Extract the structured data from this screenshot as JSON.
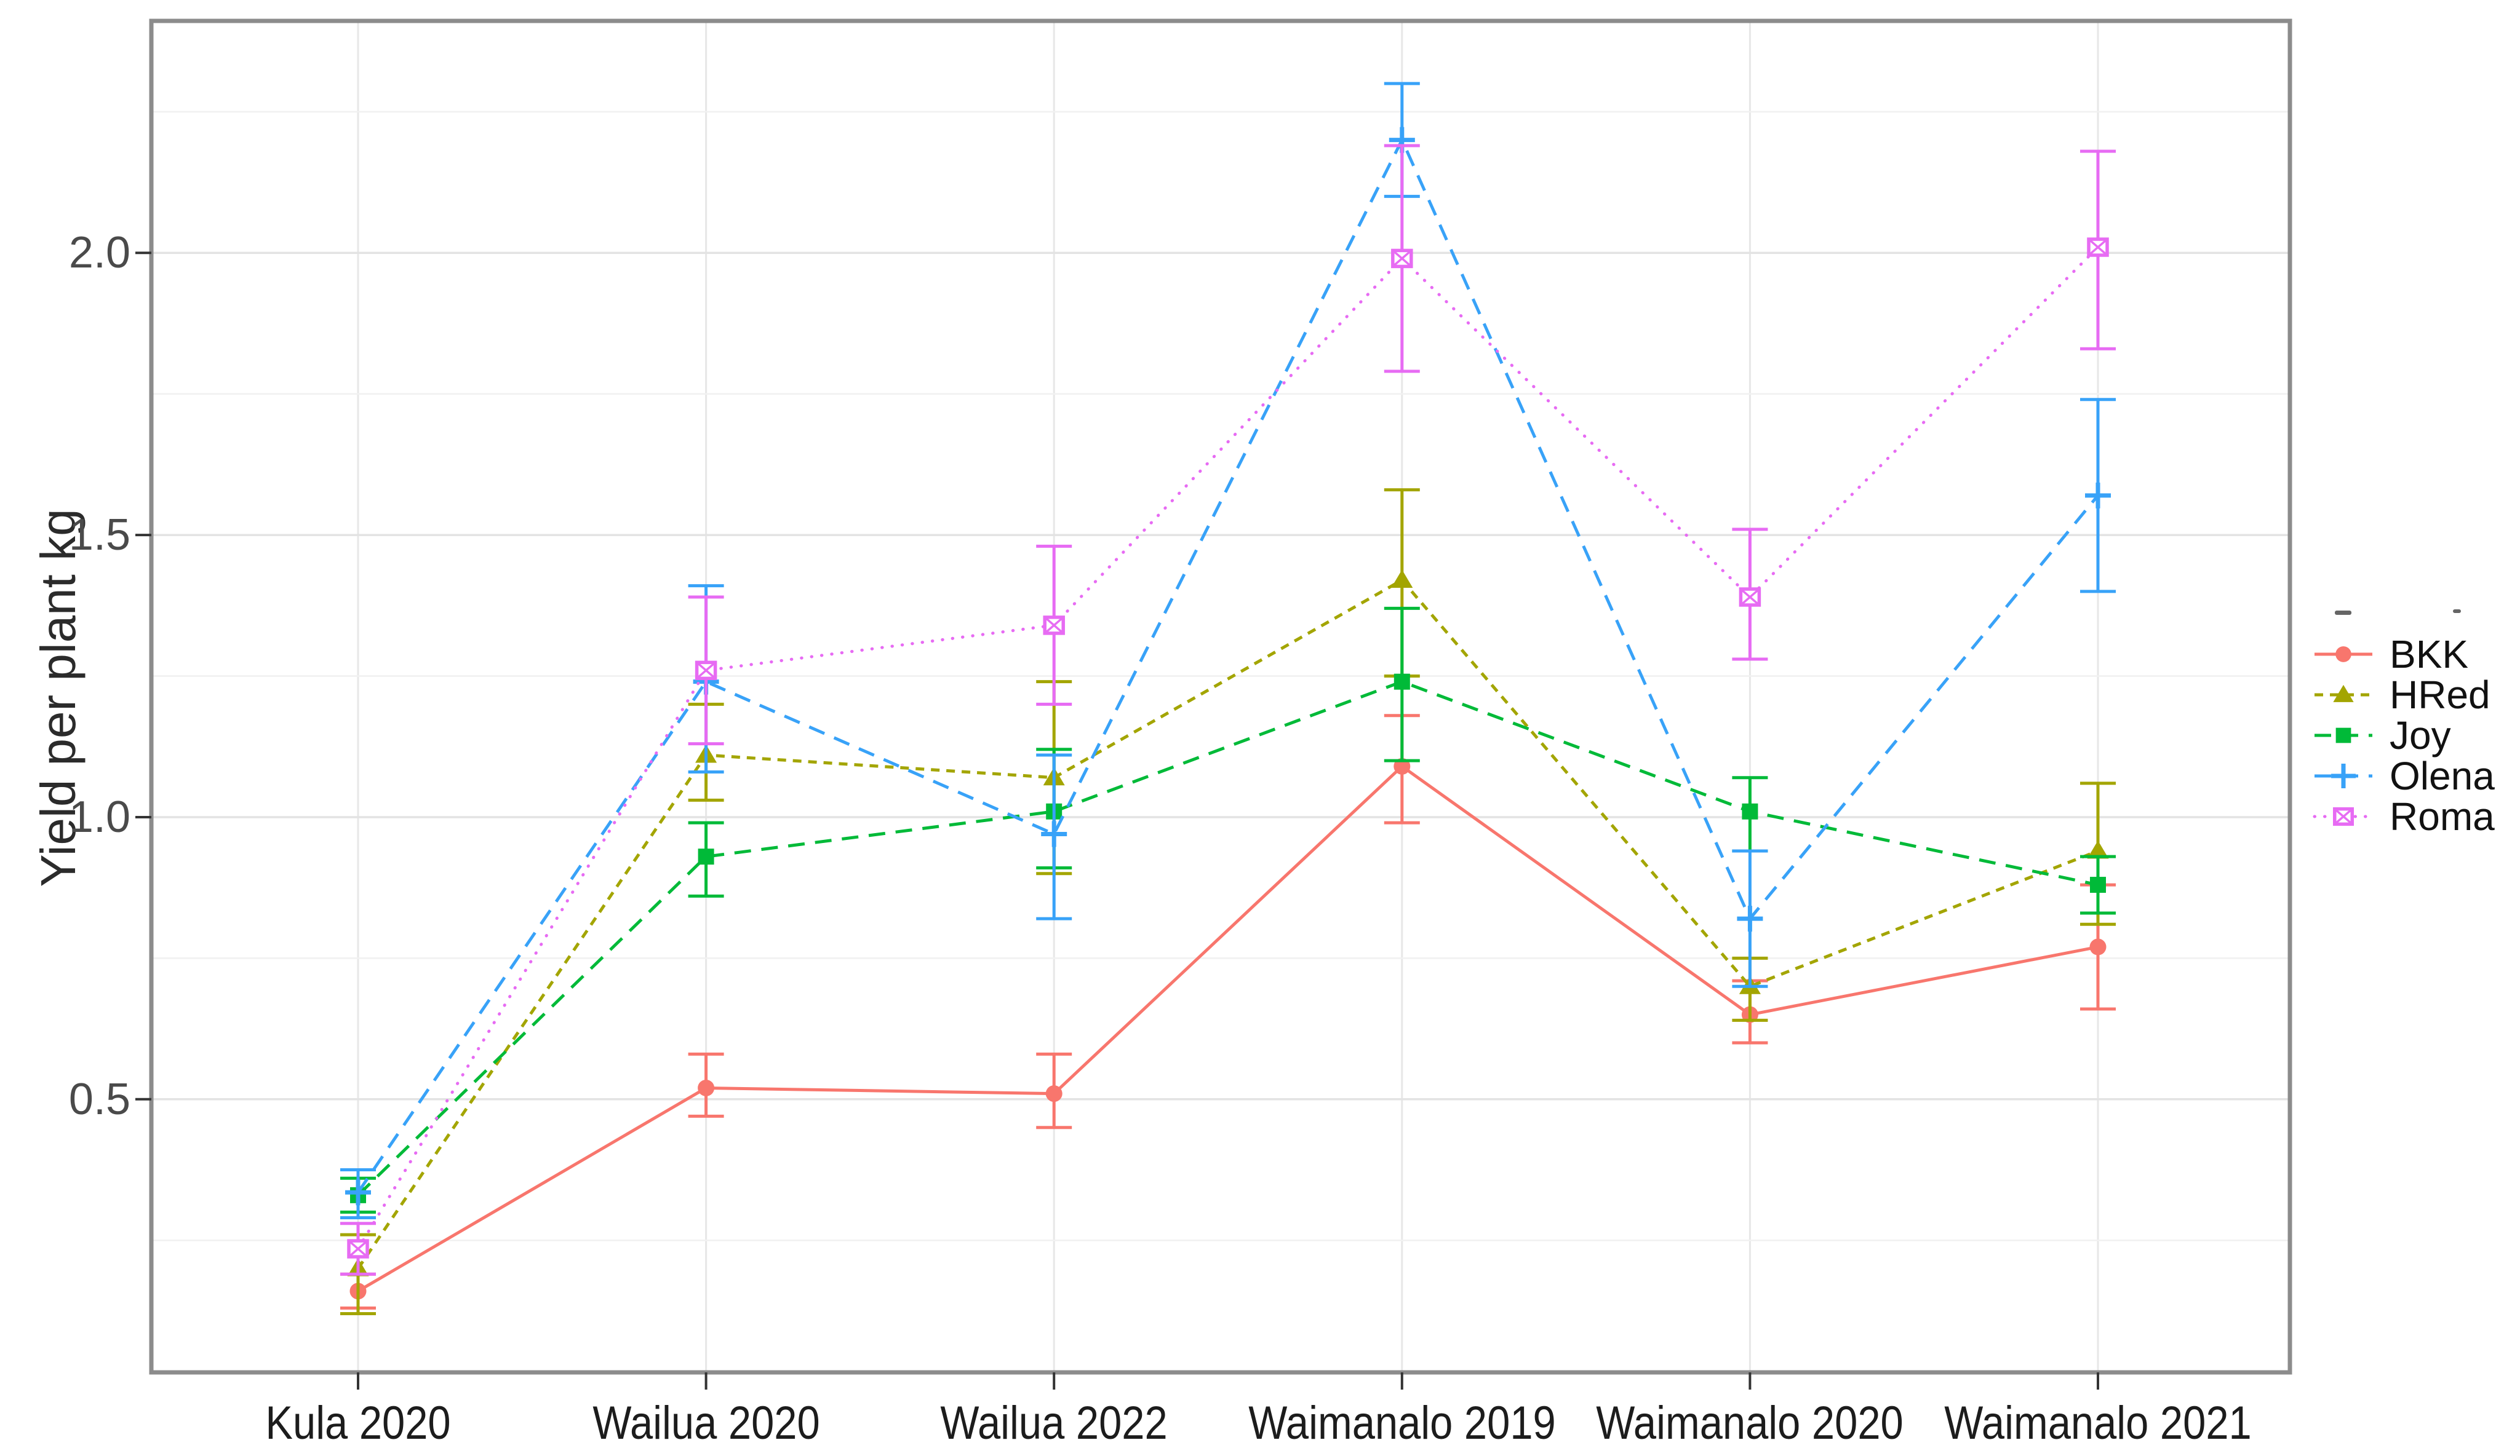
{
  "y_axis": {
    "label": "Yield per plant kg",
    "tick_labels": [
      "0.5",
      "1.0",
      "1.5",
      "2.0"
    ]
  },
  "x_axis": {
    "labels": [
      "Kula 2020",
      "Wailua 2020",
      "Wailua 2022",
      "Waimanalo 2019",
      "Waimanalo 2020",
      "Waimanalo 2021"
    ]
  },
  "chart_data": {
    "type": "line",
    "title": "",
    "xlabel": "",
    "ylabel": "Yield per plant kg",
    "ylim": [
      0.016,
      2.411
    ],
    "yticks": [
      0.5,
      1.0,
      1.5,
      2.0
    ],
    "ytick_labels": [
      "0.5",
      "1.0",
      "1.5",
      "2.0"
    ],
    "yminor_ticks": [
      0.25,
      0.75,
      1.25,
      1.75,
      2.25
    ],
    "grid": "horizontal major+minor, vertical line at each category",
    "legend_position": "right-middle",
    "error_bars": true,
    "categories": [
      "Kula 2020",
      "Wailua 2020",
      "Wailua 2022",
      "Waimanalo 2019",
      "Waimanalo 2020",
      "Waimanalo 2021"
    ],
    "series": [
      {
        "name": "BKK",
        "color": "#F8766D",
        "marker": "circle",
        "linestyle": "solid",
        "values": [
          0.16,
          0.52,
          0.51,
          1.09,
          0.65,
          0.77
        ],
        "err_low": [
          0.13,
          0.47,
          0.45,
          0.99,
          0.6,
          0.66
        ],
        "err_high": [
          0.19,
          0.58,
          0.58,
          1.18,
          0.71,
          0.88
        ]
      },
      {
        "name": "HRed",
        "color": "#A3A500",
        "marker": "triangle",
        "linestyle": "shortdash",
        "values": [
          0.2,
          1.11,
          1.07,
          1.42,
          0.7,
          0.94
        ],
        "err_low": [
          0.12,
          1.03,
          0.9,
          1.25,
          0.64,
          0.81
        ],
        "err_high": [
          0.26,
          1.2,
          1.24,
          1.58,
          0.75,
          1.06
        ]
      },
      {
        "name": "Joy",
        "color": "#00BA38",
        "marker": "square",
        "linestyle": "dashed",
        "values": [
          0.33,
          0.93,
          1.01,
          1.24,
          1.01,
          0.88
        ],
        "err_low": [
          0.3,
          0.86,
          0.91,
          1.1,
          0.94,
          0.83
        ],
        "err_high": [
          0.36,
          0.99,
          1.12,
          1.37,
          1.07,
          0.93
        ]
      },
      {
        "name": "Olena",
        "color": "#38A2F8",
        "marker": "plus",
        "linestyle": "dashed",
        "values": [
          0.335,
          1.24,
          0.97,
          2.2,
          0.82,
          1.57
        ],
        "err_low": [
          0.29,
          1.08,
          0.82,
          2.1,
          0.7,
          1.4
        ],
        "err_high": [
          0.375,
          1.41,
          1.11,
          2.3,
          0.94,
          1.74
        ]
      },
      {
        "name": "Roma",
        "color": "#E76BF3",
        "marker": "square-cross",
        "linestyle": "dotted",
        "values": [
          0.235,
          1.26,
          1.34,
          1.99,
          1.39,
          2.01
        ],
        "err_low": [
          0.19,
          1.13,
          1.2,
          1.79,
          1.28,
          1.83
        ],
        "err_high": [
          0.28,
          1.39,
          1.48,
          2.19,
          1.51,
          2.18
        ]
      }
    ]
  }
}
